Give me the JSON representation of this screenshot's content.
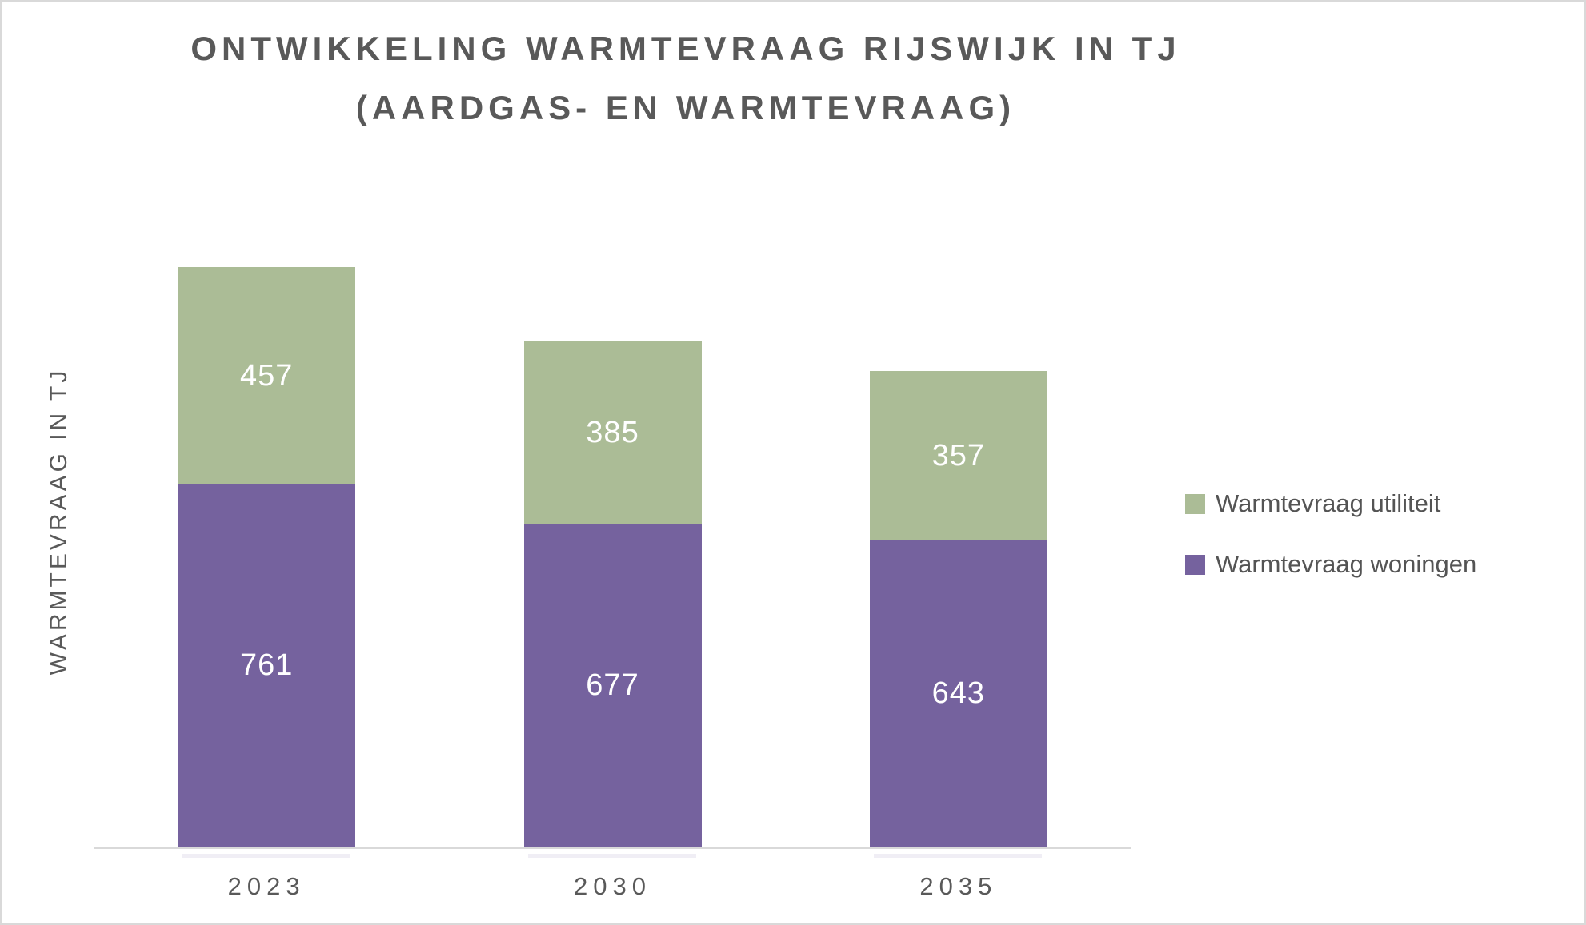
{
  "chart_data": {
    "type": "bar",
    "stacked": true,
    "title_line1": "ONTWIKKELING WARMTEVRAAG RIJSWIJK IN TJ",
    "title_line2": "(AARDGAS- EN WARMTEVRAAG)",
    "ylabel": "WARMTEVRAAG IN TJ",
    "categories": [
      "2023",
      "2030",
      "2035"
    ],
    "series": [
      {
        "name": "Warmtevraag utiliteit",
        "color": "#ABBC96",
        "values": [
          457,
          385,
          357
        ]
      },
      {
        "name": "Warmtevraag woningen",
        "color": "#75629E",
        "values": [
          761,
          677,
          643
        ]
      }
    ],
    "value_label_color": "#FFFFFF",
    "text_color": "#595959",
    "axis_color": "#D9D9D9",
    "grid": false,
    "legend_position": "right",
    "value_labels": "center",
    "ylim": [
      0,
      1280
    ]
  }
}
